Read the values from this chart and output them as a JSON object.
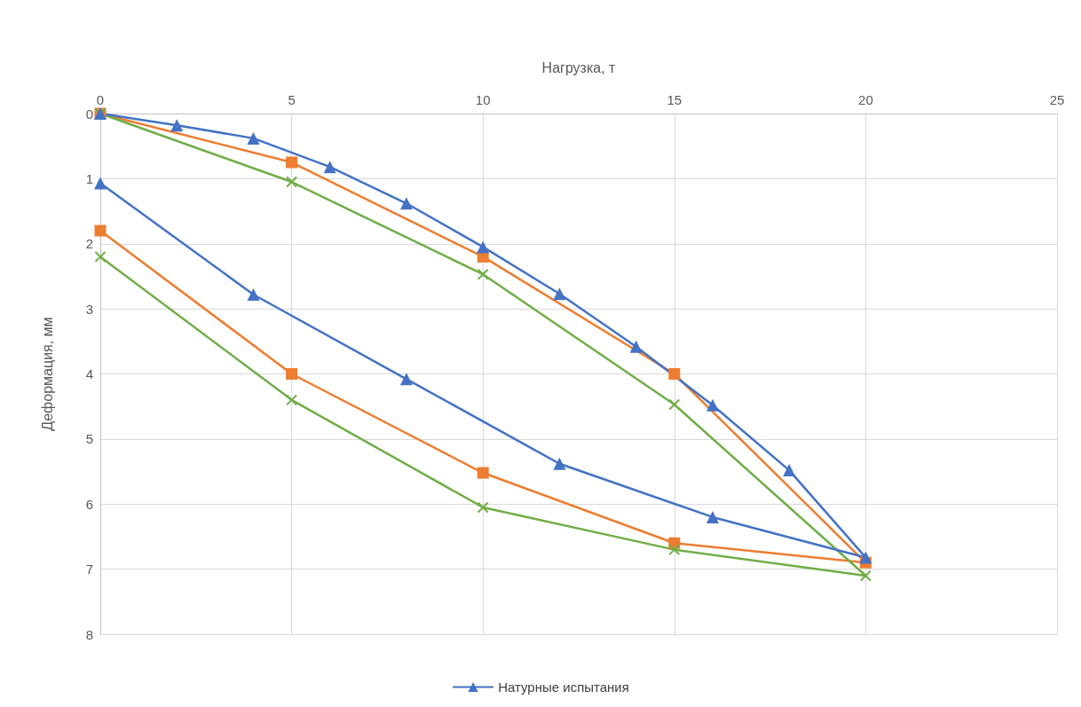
{
  "chart_data": {
    "type": "line",
    "xlabel": "Нагрузка, т",
    "ylabel": "Деформация, мм",
    "xlim": [
      0,
      25
    ],
    "xticks": [
      0,
      5,
      10,
      15,
      20,
      25
    ],
    "ylim": [
      8,
      0
    ],
    "yticks": [
      0,
      1,
      2,
      3,
      4,
      5,
      6,
      7,
      8
    ],
    "grid": true,
    "legend": "bottom",
    "series": [
      {
        "color": "#ed7d31",
        "marker": "square",
        "x": [
          0,
          5,
          10,
          15,
          20,
          15,
          10,
          5,
          0
        ],
        "values": [
          0,
          0.75,
          2.2,
          4.0,
          6.9,
          6.6,
          5.52,
          4.0,
          1.8
        ]
      },
      {
        "color": "#70ad47",
        "marker": "cross",
        "x": [
          0,
          5,
          10,
          15,
          20,
          15,
          10,
          5,
          0
        ],
        "values": [
          0,
          1.05,
          2.47,
          4.47,
          7.1,
          6.7,
          6.05,
          4.4,
          2.2
        ]
      },
      {
        "name": "Натурные испытания",
        "color": "#4472c4",
        "marker": "triangle",
        "x": [
          0,
          2,
          4,
          6,
          8,
          10,
          12,
          14,
          16,
          18,
          20,
          16,
          12,
          8,
          4,
          0
        ],
        "values": [
          0,
          0.18,
          0.38,
          0.82,
          1.38,
          2.05,
          2.77,
          3.58,
          4.48,
          5.48,
          6.82,
          6.2,
          5.38,
          4.08,
          2.78,
          1.07
        ]
      }
    ]
  }
}
